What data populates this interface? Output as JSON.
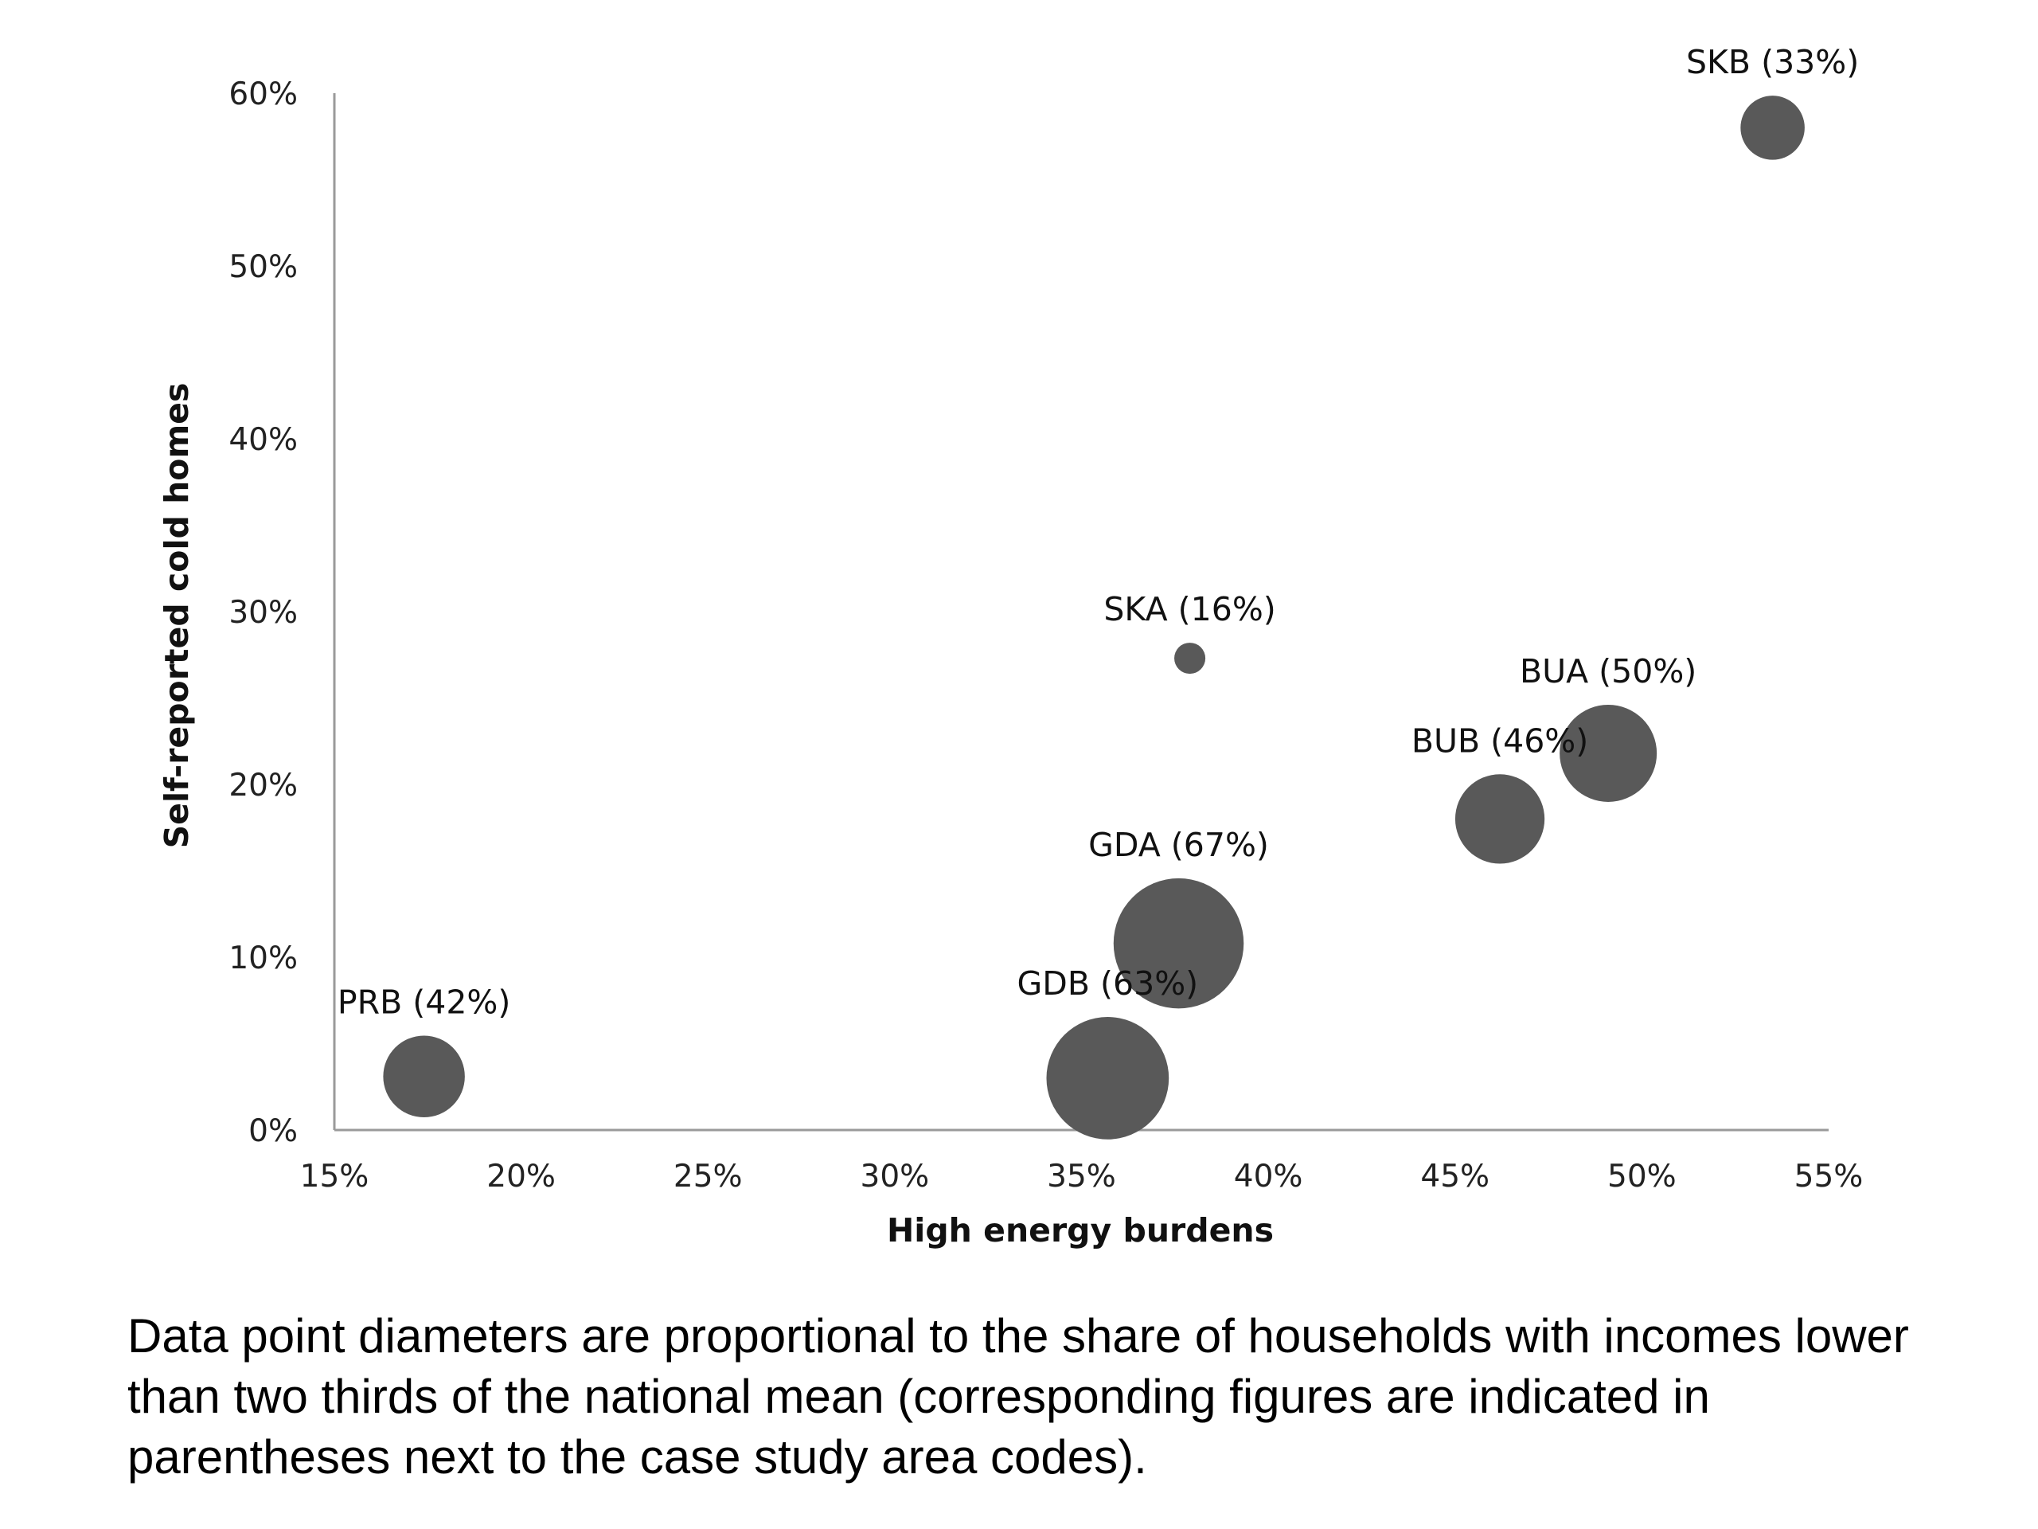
{
  "chart_data": {
    "type": "scatter",
    "title": "",
    "xlabel": "High energy burdens",
    "ylabel": "Self-reported cold homes",
    "xlim": [
      15,
      55
    ],
    "ylim": [
      0,
      60
    ],
    "x_ticks": [
      15,
      20,
      25,
      30,
      35,
      40,
      45,
      50,
      55
    ],
    "y_ticks": [
      0,
      10,
      20,
      30,
      40,
      50,
      60
    ],
    "tick_suffix": "%",
    "grid": false,
    "legend": "none",
    "marker_color": "#595959",
    "points": [
      {
        "code": "SKB",
        "label": "SKB (33%)",
        "x": 53.5,
        "y": 58.0,
        "size": 33
      },
      {
        "code": "SKA",
        "label": "SKA (16%)",
        "x": 37.9,
        "y": 27.3,
        "size": 16
      },
      {
        "code": "BUA",
        "label": "BUA (50%)",
        "x": 49.1,
        "y": 21.8,
        "size": 50
      },
      {
        "code": "BUB",
        "label": "BUB (46%)",
        "x": 46.2,
        "y": 18.0,
        "size": 46
      },
      {
        "code": "GDA",
        "label": "GDA (67%)",
        "x": 37.6,
        "y": 10.8,
        "size": 67
      },
      {
        "code": "GDB",
        "label": "GDB (63%)",
        "x": 35.7,
        "y": 3.0,
        "size": 63
      },
      {
        "code": "PRB",
        "label": "PRB (42%)",
        "x": 17.4,
        "y": 3.1,
        "size": 42
      }
    ]
  },
  "caption": "Data point diameters are proportional to the share of households with incomes lower than two thirds of the national mean (corresponding figures are indicated in parentheses next to the case study area codes)."
}
